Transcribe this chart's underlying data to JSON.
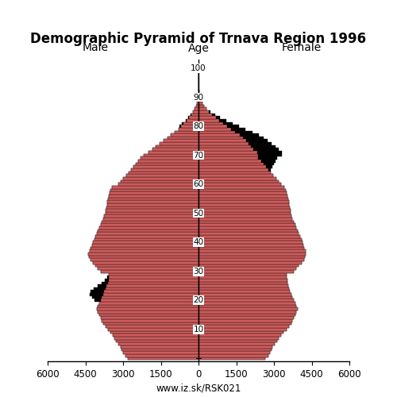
{
  "title": "Demographic Pyramid of Trnava Region 1996",
  "label_male": "Male",
  "label_female": "Female",
  "label_age": "Age",
  "xlim": 6000,
  "bar_color": "#cd5c5c",
  "url": "www.iz.sk/RSK021",
  "male": [
    2800,
    2920,
    3010,
    3060,
    3110,
    3200,
    3290,
    3360,
    3410,
    3500,
    3590,
    3700,
    3790,
    3850,
    3900,
    3950,
    4000,
    4050,
    4000,
    3950,
    3880,
    3840,
    3800,
    3750,
    3700,
    3660,
    3610,
    3580,
    3570,
    3560,
    3900,
    4020,
    4110,
    4210,
    4310,
    4360,
    4380,
    4340,
    4290,
    4240,
    4200,
    4150,
    4100,
    4050,
    4000,
    3950,
    3900,
    3850,
    3790,
    3750,
    3700,
    3680,
    3660,
    3640,
    3620,
    3600,
    3575,
    3545,
    3490,
    3440,
    3190,
    3090,
    2990,
    2880,
    2780,
    2680,
    2590,
    2490,
    2390,
    2290,
    2190,
    1990,
    1840,
    1690,
    1540,
    1390,
    1240,
    1090,
    940,
    790,
    690,
    590,
    470,
    370,
    290,
    210,
    155,
    105,
    65,
    38,
    23,
    13,
    7,
    3,
    2,
    1,
    0,
    0,
    0,
    0,
    0
  ],
  "male_black": [
    0,
    0,
    0,
    0,
    0,
    0,
    0,
    0,
    0,
    0,
    0,
    0,
    0,
    0,
    0,
    0,
    0,
    0,
    0,
    0,
    250,
    400,
    530,
    560,
    460,
    350,
    240,
    140,
    60,
    0,
    0,
    0,
    0,
    0,
    0,
    0,
    0,
    0,
    0,
    0,
    0,
    0,
    0,
    0,
    0,
    0,
    0,
    0,
    0,
    0,
    0,
    0,
    0,
    0,
    0,
    0,
    0,
    0,
    0,
    0,
    0,
    0,
    0,
    0,
    0,
    0,
    0,
    0,
    0,
    0,
    0,
    0,
    0,
    0,
    0,
    0,
    0,
    0,
    0,
    0,
    80,
    60,
    45,
    30,
    18,
    10,
    5,
    2,
    0,
    0,
    0,
    0,
    0,
    0,
    0,
    0,
    0,
    0,
    0,
    0,
    0
  ],
  "female": [
    2650,
    2780,
    2840,
    2890,
    2940,
    3040,
    3140,
    3190,
    3290,
    3390,
    3490,
    3590,
    3690,
    3740,
    3790,
    3840,
    3890,
    3940,
    3890,
    3840,
    3790,
    3740,
    3690,
    3640,
    3590,
    3570,
    3550,
    3530,
    3510,
    3490,
    3790,
    3890,
    3990,
    4090,
    4190,
    4240,
    4270,
    4250,
    4210,
    4170,
    4140,
    4090,
    4040,
    3990,
    3940,
    3890,
    3840,
    3790,
    3740,
    3690,
    3670,
    3650,
    3630,
    3610,
    3590,
    3570,
    3550,
    3520,
    3470,
    3420,
    3280,
    3180,
    3080,
    2980,
    2880,
    2780,
    2680,
    2580,
    2480,
    2380,
    2380,
    2330,
    2180,
    2080,
    1980,
    1880,
    1780,
    1630,
    1460,
    1280,
    1130,
    980,
    830,
    680,
    540,
    410,
    300,
    215,
    148,
    92,
    58,
    36,
    20,
    11,
    5,
    3,
    1,
    0,
    0,
    0,
    0
  ],
  "female_black": [
    0,
    0,
    0,
    0,
    0,
    0,
    0,
    0,
    0,
    0,
    0,
    0,
    0,
    0,
    0,
    0,
    0,
    0,
    0,
    0,
    0,
    0,
    0,
    0,
    0,
    0,
    0,
    0,
    0,
    0,
    0,
    0,
    0,
    0,
    0,
    0,
    0,
    0,
    0,
    0,
    0,
    0,
    0,
    0,
    0,
    0,
    0,
    0,
    0,
    0,
    0,
    0,
    0,
    0,
    0,
    0,
    0,
    0,
    0,
    0,
    0,
    0,
    0,
    0,
    0,
    100,
    250,
    420,
    580,
    750,
    920,
    980,
    1000,
    980,
    940,
    880,
    820,
    760,
    680,
    590,
    480,
    370,
    270,
    175,
    110,
    60,
    28,
    12,
    5,
    2,
    1,
    0,
    0,
    0,
    0,
    0,
    0,
    0,
    0,
    0,
    0
  ]
}
